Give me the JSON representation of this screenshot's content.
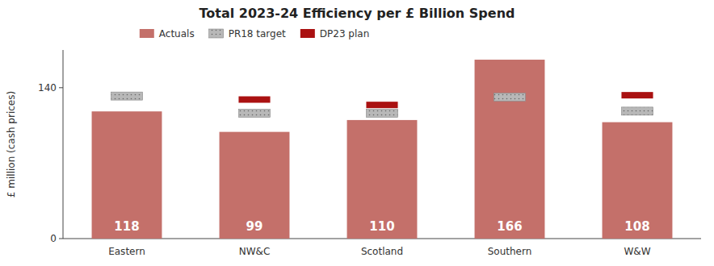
{
  "chart_data": {
    "type": "bar",
    "title": "Total 2023-24 Efficiency per £ Billion Spend",
    "y_label": "£ million (cash prices)",
    "categories": [
      "Eastern",
      "NW&C",
      "Scotland",
      "Southern",
      "W&W"
    ],
    "series": [
      {
        "name": "Actuals",
        "type": "bar",
        "color": "#c4706a",
        "values": [
          118,
          99,
          110,
          166,
          108
        ]
      },
      {
        "name": "PR18 target",
        "type": "marker",
        "marker": "hatched",
        "color": "#b8b8b8",
        "values": [
          136,
          120,
          120,
          135,
          122
        ]
      },
      {
        "name": "DP23 plan",
        "type": "marker",
        "marker": "solid",
        "color": "#aa1111",
        "values": [
          null,
          132,
          127,
          null,
          136
        ]
      }
    ],
    "ylim": [
      0,
      175
    ],
    "yticks": [
      0,
      140
    ],
    "grid": false,
    "legend": "upper-left",
    "data_labels": true
  }
}
